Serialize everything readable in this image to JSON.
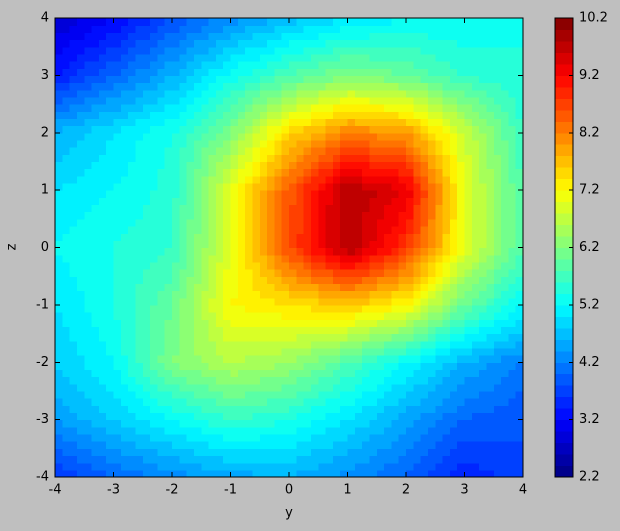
{
  "chart_data": {
    "type": "contourf",
    "xlabel": "y",
    "ylabel": "z",
    "x": [
      -4,
      -3,
      -2,
      -1,
      0,
      1,
      2,
      3,
      4
    ],
    "y": [
      -4,
      -3,
      -2,
      -1,
      0,
      1,
      2,
      3,
      4
    ],
    "values": [
      [
        3.6,
        4.0,
        4.3,
        4.5,
        4.6,
        4.3,
        4.0,
        3.4,
        3.8
      ],
      [
        4.4,
        4.8,
        5.2,
        5.6,
        5.4,
        5.0,
        4.5,
        4.0,
        3.8
      ],
      [
        4.8,
        5.2,
        6.2,
        6.6,
        6.4,
        5.8,
        5.2,
        4.6,
        4.2
      ],
      [
        5.0,
        5.4,
        6.0,
        7.2,
        7.4,
        7.6,
        7.2,
        6.0,
        5.2
      ],
      [
        5.2,
        5.4,
        5.6,
        7.0,
        8.6,
        9.8,
        8.8,
        7.0,
        5.8
      ],
      [
        5.0,
        5.2,
        5.5,
        7.0,
        8.5,
        9.8,
        9.4,
        7.0,
        5.8
      ],
      [
        4.6,
        5.0,
        5.4,
        6.2,
        7.5,
        8.2,
        8.0,
        6.8,
        5.6
      ],
      [
        3.4,
        4.0,
        4.6,
        5.3,
        5.8,
        6.2,
        6.0,
        5.6,
        5.4
      ],
      [
        2.8,
        3.2,
        3.8,
        4.3,
        4.7,
        5.0,
        5.2,
        5.2,
        5.4
      ]
    ],
    "colormap": "jet",
    "levels": 40,
    "zlim": [
      2.2,
      10.2
    ],
    "cticks": [
      2.2,
      3.2,
      4.2,
      5.2,
      6.2,
      7.2,
      8.2,
      9.2,
      10.2
    ],
    "xlim": [
      -4,
      4
    ],
    "ylim": [
      -4,
      4
    ],
    "xticks": [
      -4,
      -3,
      -2,
      -1,
      0,
      1,
      2,
      3,
      4
    ],
    "yticks": [
      -4,
      -3,
      -2,
      -1,
      0,
      1,
      2,
      3,
      4
    ]
  }
}
